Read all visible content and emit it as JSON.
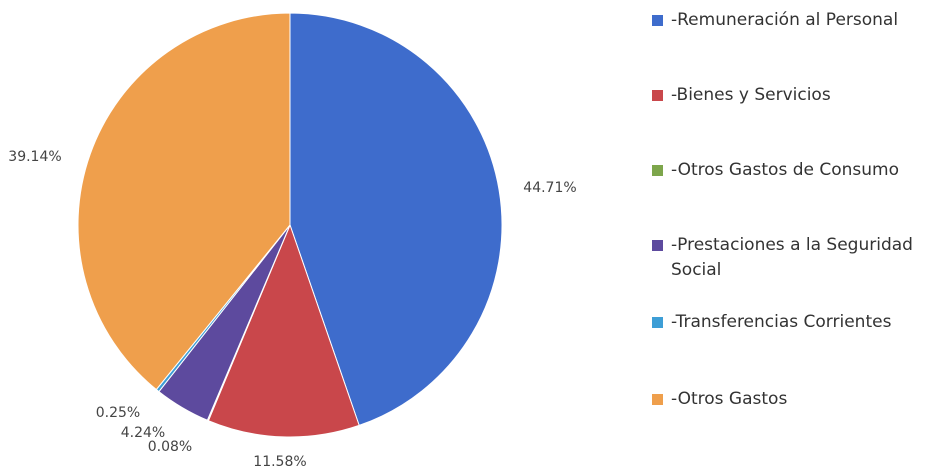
{
  "chart_data": {
    "type": "pie",
    "categories": [
      "-Remuneración al Personal",
      "-Bienes y Servicios",
      "-Otros Gastos de Consumo",
      "-Prestaciones a la Seguridad Social",
      "-Transferencias Corrientes",
      "-Otros Gastos"
    ],
    "values": [
      44.71,
      11.58,
      0.08,
      4.24,
      0.25,
      39.14
    ],
    "value_labels": [
      "44.71%",
      "11.58%",
      "0.08%",
      "4.24%",
      "0.25%",
      "39.14%"
    ],
    "colors": [
      "#3e6ccc",
      "#c9474b",
      "#7da64b",
      "#5d4a9e",
      "#3d9ed6",
      "#ef9f4c"
    ],
    "legend": "right"
  }
}
